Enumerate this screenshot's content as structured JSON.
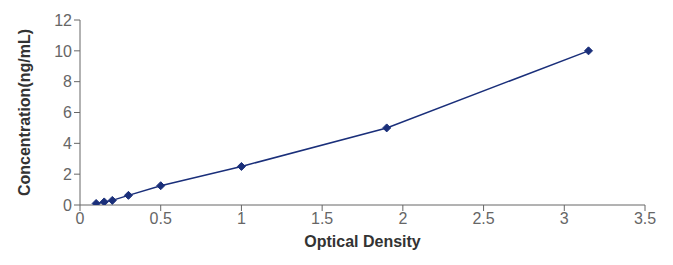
{
  "chart_data": {
    "type": "line",
    "x": [
      0.1,
      0.15,
      0.2,
      0.3,
      0.5,
      1.0,
      1.9,
      3.15
    ],
    "values": [
      0.1,
      0.2,
      0.3,
      0.625,
      1.25,
      2.5,
      5.0,
      10.0
    ],
    "color": "#1a2f7a",
    "marker": "diamond",
    "xlabel": "Optical Density",
    "ylabel": "Concentration(ng/mL)",
    "xlim": [
      0,
      3.5
    ],
    "ylim": [
      0,
      12
    ],
    "xticks": [
      0,
      0.5,
      1,
      1.5,
      2,
      2.5,
      3,
      3.5
    ],
    "yticks": [
      0,
      2,
      4,
      6,
      8,
      10,
      12
    ]
  }
}
